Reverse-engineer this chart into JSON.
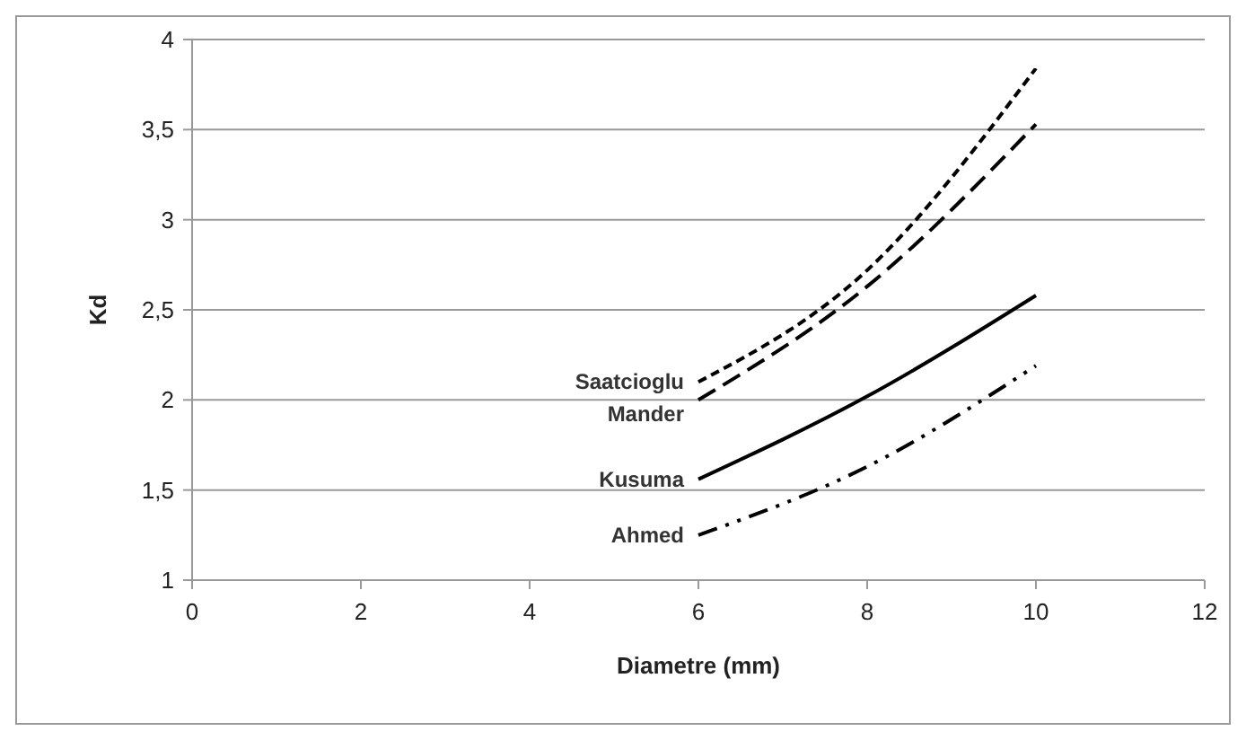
{
  "chart_data": {
    "type": "line",
    "xlabel": "Diametre (mm)",
    "ylabel": "Kd",
    "xlim": [
      0,
      12
    ],
    "xticks": [
      0,
      2,
      4,
      6,
      8,
      10,
      12
    ],
    "ylim": [
      1,
      4
    ],
    "yticks": [
      1,
      {
        "value": 1.5,
        "label": "1,5"
      },
      2,
      {
        "value": 2.5,
        "label": "2,5"
      },
      3,
      {
        "value": 3.5,
        "label": "3,5"
      },
      4
    ],
    "grid": "y",
    "x": [
      6,
      8,
      10
    ],
    "series": [
      {
        "name": "Saatcioglu",
        "color": "#000000",
        "line_style": "dotted",
        "values": [
          2.1,
          2.72,
          3.84
        ]
      },
      {
        "name": "Mander",
        "color": "#000000",
        "line_style": "dashed",
        "values": [
          2.0,
          2.63,
          3.53
        ]
      },
      {
        "name": "Kusuma",
        "color": "#000000",
        "line_style": "solid",
        "values": [
          1.56,
          2.02,
          2.58
        ]
      },
      {
        "name": "Ahmed",
        "color": "#000000",
        "line_style": "dashdot",
        "values": [
          1.25,
          1.63,
          2.19
        ]
      }
    ]
  }
}
